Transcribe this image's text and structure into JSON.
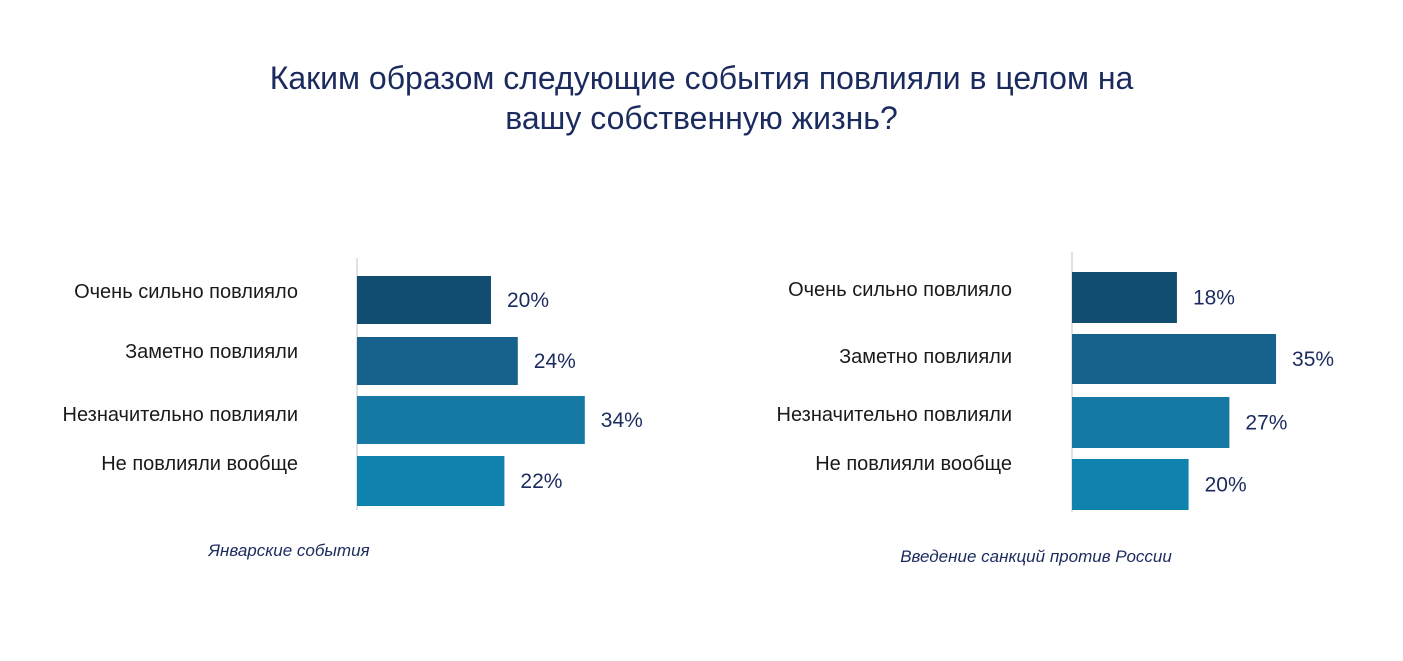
{
  "title_line1": "Каким образом следующие события повлияли в целом на",
  "title_line2": "вашу собственную жизнь?",
  "chart_data": [
    {
      "type": "bar",
      "orientation": "horizontal",
      "caption": "Январские события",
      "categories": [
        "Очень сильно повлияло",
        "Заметно повлияли",
        "Незначительно повлияли",
        "Не повлияли вообще"
      ],
      "values": [
        20,
        24,
        34,
        22
      ],
      "value_labels": [
        "20%",
        "24%",
        "34%",
        "22%"
      ],
      "colors": [
        "#124e6f",
        "#17628c",
        "#1679a3",
        "#0f82ad"
      ],
      "grid": false
    },
    {
      "type": "bar",
      "orientation": "horizontal",
      "caption": "Введение санкций против России",
      "categories": [
        "Очень сильно повлияло",
        "Заметно повлияли",
        "Незначительно повлияли",
        "Не повлияли вообще"
      ],
      "values": [
        18,
        35,
        27,
        20
      ],
      "value_labels": [
        "18%",
        "35%",
        "27%",
        "20%"
      ],
      "colors": [
        "#124e6f",
        "#17628c",
        "#1679a3",
        "#0f82ad"
      ],
      "grid": false
    }
  ]
}
